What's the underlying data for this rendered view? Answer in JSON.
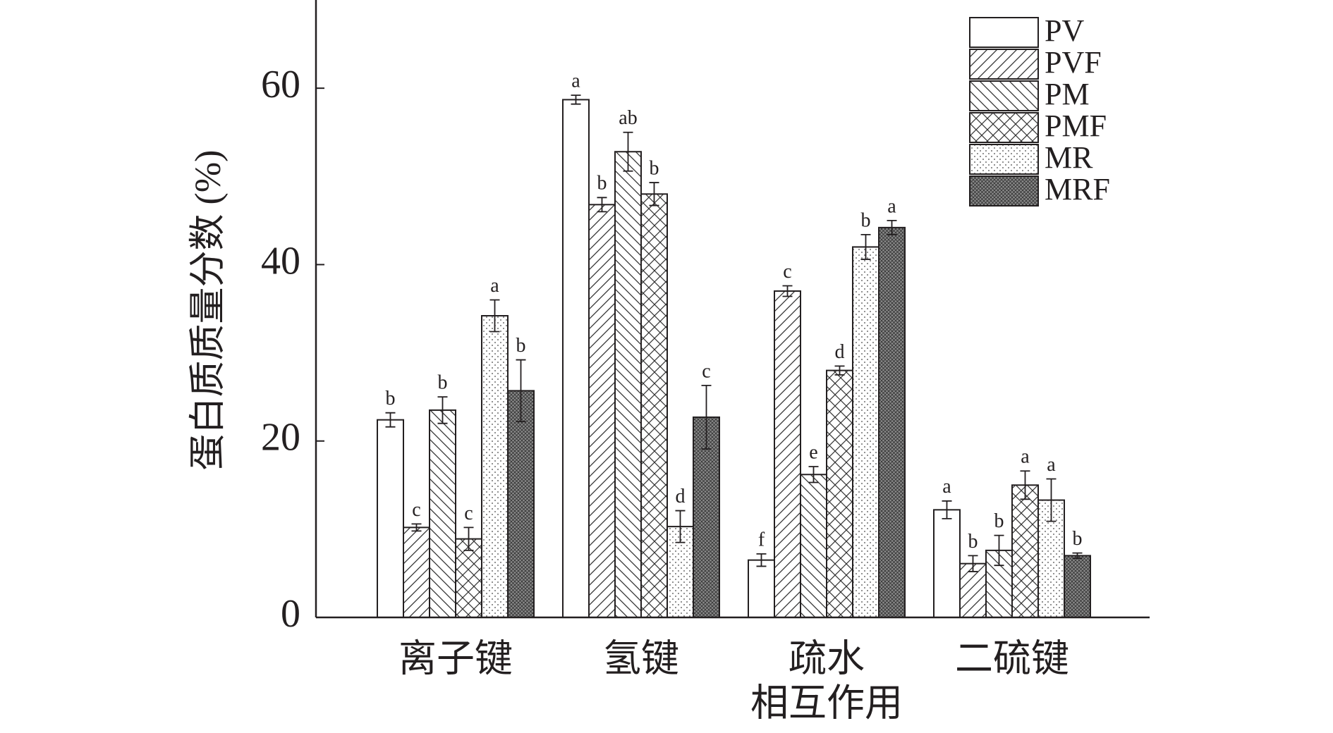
{
  "chart_data": {
    "type": "bar",
    "y_label": "蛋白质质量分数 (%)",
    "categories": [
      [
        "离子键"
      ],
      [
        "氢键"
      ],
      [
        "疏水",
        "相互作用"
      ],
      [
        "二硫键"
      ]
    ],
    "ylim": [
      0,
      70
    ],
    "yticks": [
      0,
      20,
      40,
      60
    ],
    "legend": "top-right",
    "series": [
      {
        "name": "PV",
        "pattern": "none",
        "color": "#ffffff",
        "values": [
          22.4,
          58.7,
          6.5,
          12.2
        ],
        "errors": [
          0.8,
          0.5,
          0.7,
          1.0
        ],
        "labels": [
          "b",
          "a",
          "f",
          "a"
        ]
      },
      {
        "name": "PVF",
        "pattern": "diag-up",
        "color": "#ffffff",
        "values": [
          10.2,
          46.8,
          37.0,
          6.1
        ],
        "errors": [
          0.4,
          0.8,
          0.6,
          0.9
        ],
        "labels": [
          "c",
          "b",
          "c",
          "b"
        ]
      },
      {
        "name": "PM",
        "pattern": "diag-down",
        "color": "#ffffff",
        "values": [
          23.5,
          52.8,
          16.2,
          7.6
        ],
        "errors": [
          1.5,
          2.2,
          0.9,
          1.7
        ],
        "labels": [
          "b",
          "ab",
          "e",
          "b"
        ]
      },
      {
        "name": "PMF",
        "pattern": "cross",
        "color": "#ffffff",
        "values": [
          8.9,
          48.0,
          28.0,
          15.0
        ],
        "errors": [
          1.3,
          1.3,
          0.5,
          1.6
        ],
        "labels": [
          "c",
          "b",
          "d",
          "a"
        ]
      },
      {
        "name": "MR",
        "pattern": "dots",
        "color": "#ffffff",
        "values": [
          34.2,
          10.3,
          42.0,
          13.3
        ],
        "errors": [
          1.8,
          1.8,
          1.4,
          2.4
        ],
        "labels": [
          "a",
          "d",
          "b",
          "a"
        ]
      },
      {
        "name": "MRF",
        "pattern": "dense",
        "color": "#8a8a8a",
        "values": [
          25.7,
          22.7,
          44.2,
          7.0
        ],
        "errors": [
          3.5,
          3.6,
          0.8,
          0.3
        ],
        "labels": [
          "b",
          "c",
          "a",
          "b"
        ]
      }
    ]
  }
}
